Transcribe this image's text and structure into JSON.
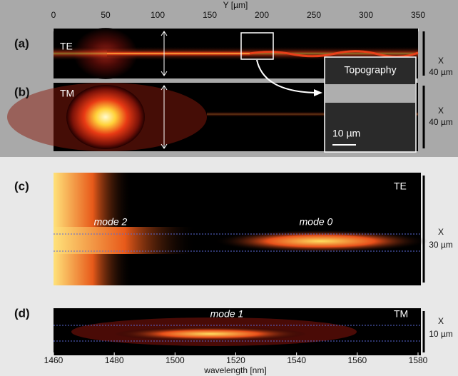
{
  "top_axis": {
    "label": "Y [µm]",
    "ticks": [
      0,
      50,
      100,
      150,
      200,
      250,
      300,
      350
    ]
  },
  "panels": [
    {
      "label": "(a)",
      "polarization": "TE",
      "scale": [
        "X",
        "40 µm"
      ]
    },
    {
      "label": "(b)",
      "polarization": "TM",
      "scale": [
        "X",
        "40 µm"
      ]
    },
    {
      "label": "(c)",
      "polarization": "TE",
      "scale": [
        "X",
        "30 µm"
      ],
      "annotations": [
        "mode 2",
        "mode 0"
      ]
    },
    {
      "label": "(d)",
      "polarization": "TM",
      "scale": [
        "X",
        "10 µm"
      ],
      "annotations": [
        "mode 1"
      ]
    }
  ],
  "inset": {
    "title": "Topography",
    "scale_bar": "10 µm"
  },
  "bottom_axis": {
    "label": "wavelength [nm]",
    "ticks": [
      1460,
      1480,
      1500,
      1520,
      1540,
      1560,
      1580
    ]
  }
}
